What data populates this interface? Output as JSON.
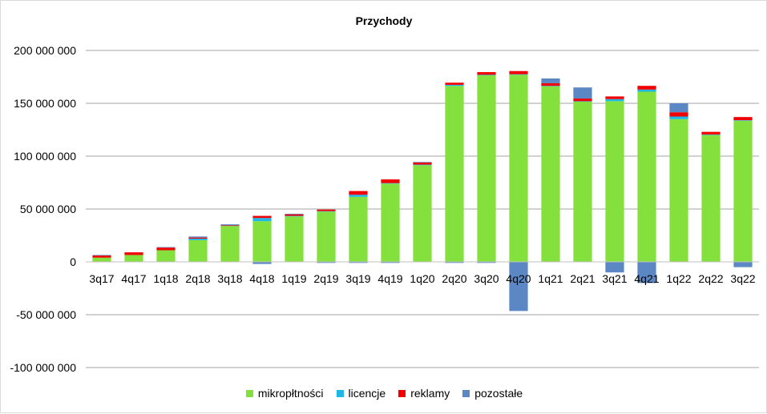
{
  "chart_data": {
    "type": "bar",
    "stacked": true,
    "title": "Przychody",
    "xlabel": "",
    "ylabel": "",
    "ylim": [
      -100000000,
      200000000
    ],
    "y_ticks": [
      200000000,
      150000000,
      100000000,
      50000000,
      0,
      -50000000,
      -100000000
    ],
    "y_tick_labels": [
      "200 000 000",
      "150 000 000",
      "100 000 000",
      "50 000 000",
      "0",
      "-50 000 000",
      "-100 000 000"
    ],
    "grid": true,
    "legend_position": "bottom",
    "categories": [
      "3q17",
      "4q17",
      "1q18",
      "2q18",
      "3q18",
      "4q18",
      "1q19",
      "2q19",
      "3q19",
      "4q19",
      "1q20",
      "2q20",
      "3q20",
      "4q20",
      "1q21",
      "2q21",
      "3q21",
      "4q21",
      "1q22",
      "2q22",
      "3q22"
    ],
    "series": [
      {
        "name": "mikropłtności",
        "color": "#84e03c",
        "values": [
          4000000,
          6500000,
          11000000,
          20500000,
          34000000,
          38500000,
          43000000,
          47500000,
          61500000,
          74000000,
          91500000,
          166500000,
          176500000,
          177000000,
          166000000,
          151500000,
          152000000,
          161000000,
          135000000,
          120000000,
          133500000
        ]
      },
      {
        "name": "licencje",
        "color": "#1eb7e6",
        "values": [
          0,
          0,
          0,
          1500000,
          0,
          3000000,
          500000,
          500000,
          2000000,
          500000,
          500000,
          1000000,
          500000,
          500000,
          500000,
          500000,
          2000000,
          2000000,
          2500000,
          500000,
          500000
        ]
      },
      {
        "name": "reklamy",
        "color": "#f00000",
        "values": [
          2000000,
          2500000,
          2500000,
          1000000,
          500000,
          2000000,
          1500000,
          1500000,
          3500000,
          3500000,
          2000000,
          2000000,
          2500000,
          3000000,
          2500000,
          2500000,
          2500000,
          3500000,
          4000000,
          2500000,
          3000000
        ]
      },
      {
        "name": "pozostałe",
        "color": "#5b87c5",
        "values": [
          500000,
          0,
          500000,
          1000000,
          1000000,
          -2000000,
          500000,
          -1000000,
          -1000000,
          -1000000,
          500000,
          -1000000,
          -1000000,
          -46500000,
          4500000,
          10500000,
          -10000000,
          -20000000,
          8500000,
          0,
          -5000000
        ]
      }
    ]
  }
}
